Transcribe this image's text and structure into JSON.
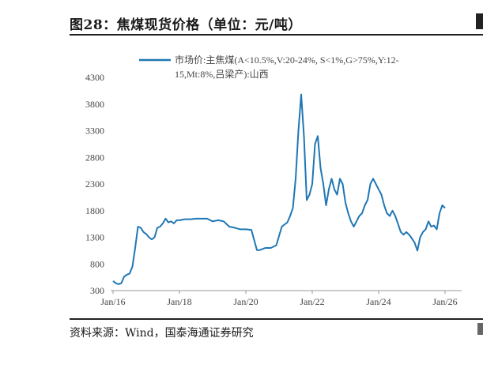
{
  "figure": {
    "title": "图28：焦煤现货价格（单位：元/吨）",
    "source": "资料来源：Wind，国泰海通证券研究"
  },
  "chart_data": {
    "type": "line",
    "title": "",
    "xlabel": "",
    "ylabel": "",
    "ylim": [
      300,
      4300
    ],
    "yticks": [
      "300",
      "800",
      "1300",
      "1800",
      "2300",
      "2800",
      "3300",
      "3800",
      "4300"
    ],
    "xticks": [
      "Jan/16",
      "Jan/18",
      "Jan/20",
      "Jan/22",
      "Jan/24",
      "Jan/26"
    ],
    "grid": false,
    "legend_position": "top",
    "series": [
      {
        "name": "市场价:主焦煤(A<10.5%,V:20-24%, S<1%,G>75%,Y:12-15,Mt:8%,吕梁产):山西",
        "color": "#1f77b4",
        "x": [
          "2016-01",
          "2016-02",
          "2016-03",
          "2016-04",
          "2016-05",
          "2016-06",
          "2016-07",
          "2016-08",
          "2016-09",
          "2016-10",
          "2016-11",
          "2016-12",
          "2017-01",
          "2017-02",
          "2017-03",
          "2017-04",
          "2017-05",
          "2017-06",
          "2017-07",
          "2017-08",
          "2017-09",
          "2017-10",
          "2017-11",
          "2017-12",
          "2018-01",
          "2018-03",
          "2018-05",
          "2018-07",
          "2018-09",
          "2018-11",
          "2019-01",
          "2019-03",
          "2019-05",
          "2019-07",
          "2019-09",
          "2019-11",
          "2020-01",
          "2020-03",
          "2020-05",
          "2020-06",
          "2020-08",
          "2020-10",
          "2020-12",
          "2021-02",
          "2021-04",
          "2021-05",
          "2021-06",
          "2021-07",
          "2021-08",
          "2021-09",
          "2021-10",
          "2021-11",
          "2021-12",
          "2022-01",
          "2022-02",
          "2022-03",
          "2022-04",
          "2022-05",
          "2022-06",
          "2022-07",
          "2022-08",
          "2022-09",
          "2022-10",
          "2022-11",
          "2022-12",
          "2023-01",
          "2023-02",
          "2023-03",
          "2023-04",
          "2023-05",
          "2023-06",
          "2023-07",
          "2023-08",
          "2023-09",
          "2023-10",
          "2023-11",
          "2023-12",
          "2024-01",
          "2024-02",
          "2024-03",
          "2024-04",
          "2024-05",
          "2024-06",
          "2024-07",
          "2024-08",
          "2024-09",
          "2024-10",
          "2024-11",
          "2024-12",
          "2025-01",
          "2025-02",
          "2025-03",
          "2025-04",
          "2025-05",
          "2025-06",
          "2025-07",
          "2025-08",
          "2025-09",
          "2025-10",
          "2025-11",
          "2025-12",
          "2026-01"
        ],
        "values": [
          480,
          440,
          420,
          440,
          560,
          600,
          620,
          750,
          1100,
          1500,
          1480,
          1400,
          1360,
          1300,
          1260,
          1300,
          1480,
          1500,
          1560,
          1650,
          1580,
          1600,
          1560,
          1620,
          1620,
          1640,
          1640,
          1650,
          1650,
          1650,
          1600,
          1620,
          1600,
          1500,
          1480,
          1450,
          1450,
          1440,
          1060,
          1060,
          1100,
          1100,
          1150,
          1500,
          1580,
          1700,
          1850,
          2400,
          3300,
          3980,
          3200,
          2000,
          2100,
          2300,
          3050,
          3200,
          2600,
          2300,
          1900,
          2200,
          2400,
          2200,
          2100,
          2400,
          2300,
          1950,
          1750,
          1600,
          1500,
          1600,
          1700,
          1750,
          1900,
          2000,
          2300,
          2400,
          2300,
          2200,
          2100,
          1900,
          1750,
          1700,
          1800,
          1700,
          1550,
          1400,
          1350,
          1400,
          1350,
          1280,
          1200,
          1050,
          1300,
          1400,
          1450,
          1600,
          1500,
          1520,
          1450,
          1750,
          1900,
          1850
        ]
      }
    ]
  }
}
